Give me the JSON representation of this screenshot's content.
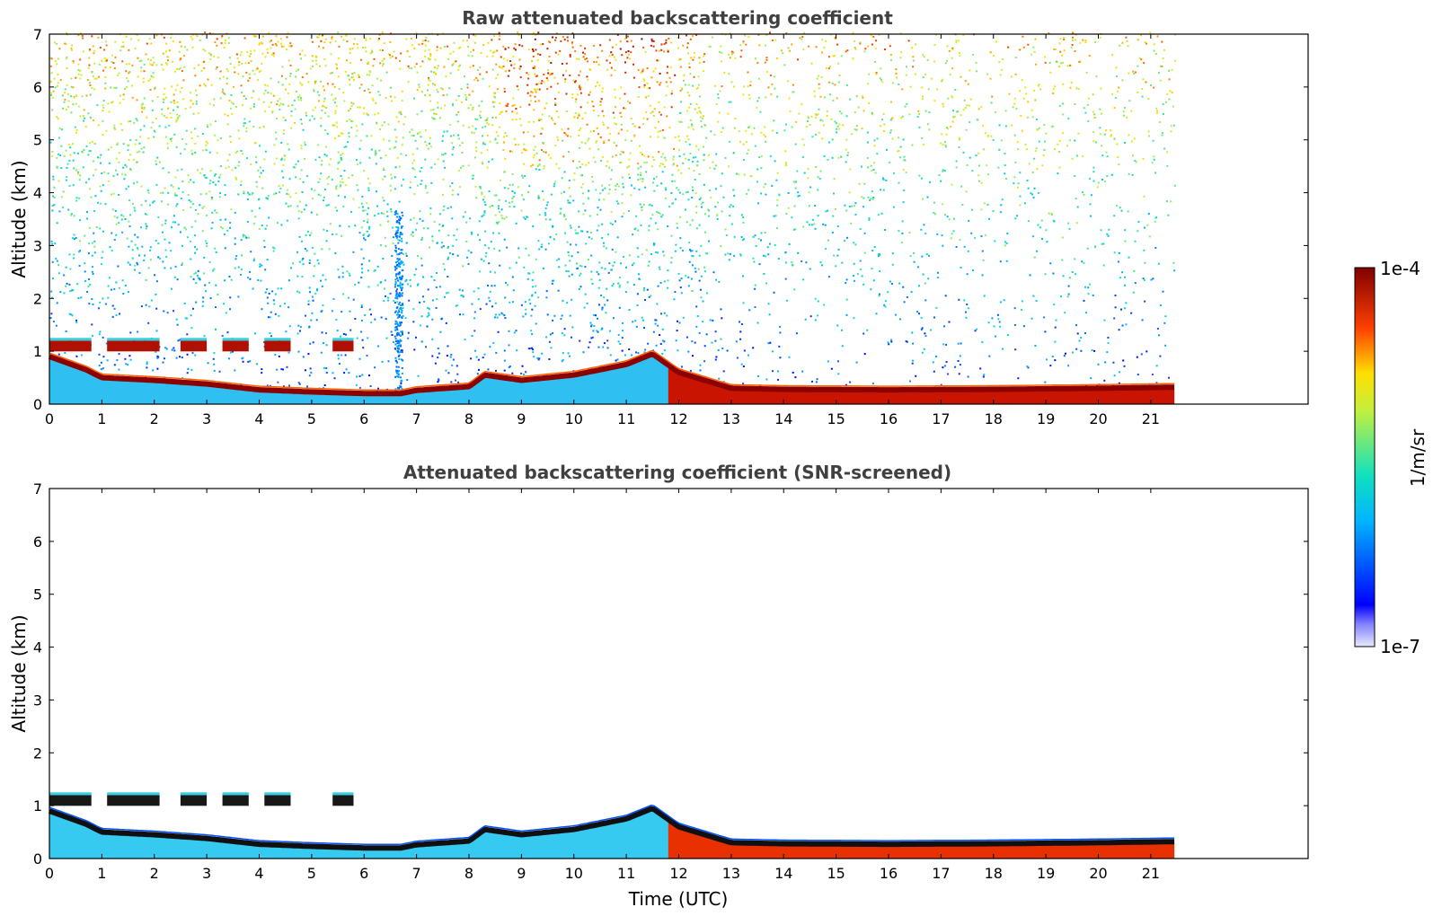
{
  "chart_data": [
    {
      "type": "heatmap",
      "title": "Raw attenuated backscattering coefficient",
      "xlabel": "",
      "ylabel": "Altitude (km)",
      "xlim": [
        0,
        24
      ],
      "ylim": [
        0,
        7
      ],
      "x_ticks": [
        "0",
        "1",
        "2",
        "3",
        "4",
        "5",
        "6",
        "7",
        "8",
        "9",
        "10",
        "11",
        "12",
        "13",
        "14",
        "15",
        "16",
        "17",
        "18",
        "19",
        "20",
        "21"
      ],
      "y_ticks": [
        "0",
        "1",
        "2",
        "3",
        "4",
        "5",
        "6",
        "7"
      ],
      "data_end_time": 21.45,
      "boundary_layer": {
        "time": [
          0,
          0.7,
          1,
          2,
          3,
          4,
          5,
          6,
          6.7,
          7,
          8,
          8.3,
          9,
          10,
          11,
          11.5,
          12,
          13,
          14,
          16,
          18,
          20,
          21.45
        ],
        "top_altitude": [
          0.9,
          0.65,
          0.5,
          0.45,
          0.38,
          0.27,
          0.23,
          0.2,
          0.2,
          0.26,
          0.33,
          0.55,
          0.45,
          0.55,
          0.75,
          0.95,
          0.6,
          0.3,
          0.28,
          0.27,
          0.28,
          0.3,
          0.32
        ]
      },
      "cloud_layer": {
        "altitude_km": 1.1,
        "time_segments": [
          [
            0,
            0.8
          ],
          [
            1.1,
            2.1
          ],
          [
            2.5,
            3.0
          ],
          [
            3.3,
            3.8
          ],
          [
            4.1,
            4.6
          ],
          [
            5.4,
            5.8
          ]
        ]
      },
      "aerosol_plume": {
        "time": 6.65,
        "top_altitude_km": 3.5
      },
      "noise_top_altitude_km": 7
    },
    {
      "type": "heatmap",
      "title": "Attenuated backscattering coefficient (SNR-screened)",
      "xlabel": "Time (UTC)",
      "ylabel": "Altitude (km)",
      "xlim": [
        0,
        24
      ],
      "ylim": [
        0,
        7
      ],
      "x_ticks": [
        "0",
        "1",
        "2",
        "3",
        "4",
        "5",
        "6",
        "7",
        "8",
        "9",
        "10",
        "11",
        "12",
        "13",
        "14",
        "15",
        "16",
        "17",
        "18",
        "19",
        "20",
        "21"
      ],
      "y_ticks": [
        "0",
        "1",
        "2",
        "3",
        "4",
        "5",
        "6",
        "7"
      ],
      "data_end_time": 21.45,
      "screened": true
    }
  ],
  "colorbar": {
    "label": "1/m/sr",
    "max_label": "1e-4",
    "min_label": "1e-7",
    "scale": "log",
    "colormap": "jet"
  }
}
